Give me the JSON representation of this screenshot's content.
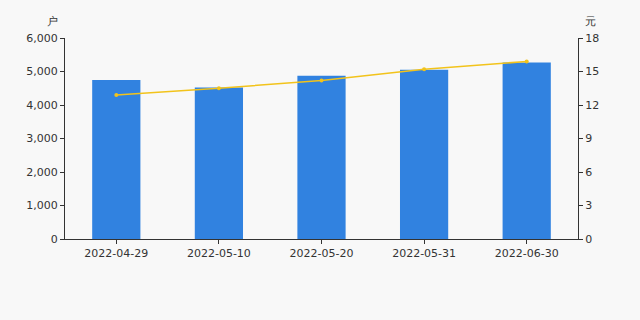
{
  "chart_data": {
    "type": "bar",
    "categories": [
      "2022-04-29",
      "2022-05-10",
      "2022-05-20",
      "2022-05-31",
      "2022-06-30"
    ],
    "ylabel": "户",
    "y2label": "元",
    "series": [
      {
        "type": "bar",
        "color": "#3182e0",
        "values": [
          4750,
          4520,
          4870,
          5050,
          5270
        ]
      },
      {
        "type": "line",
        "axis": "y2",
        "color": "#f2c31b",
        "marker": "circle",
        "values": [
          12.9,
          13.5,
          14.2,
          15.2,
          15.9
        ]
      }
    ],
    "ylim": [
      0,
      6000
    ],
    "yticks": [
      0,
      {
        "value": 1000,
        "label": "1,000"
      },
      {
        "value": 2000,
        "label": "2,000"
      },
      {
        "value": 3000,
        "label": "3,000"
      },
      {
        "value": 4000,
        "label": "4,000"
      },
      {
        "value": 5000,
        "label": "5,000"
      },
      {
        "value": 6000,
        "label": "6,000"
      }
    ],
    "y2lim": [
      0,
      18
    ],
    "y2ticks": [
      0,
      3,
      6,
      9,
      12,
      15,
      18
    ],
    "grid": false
  }
}
